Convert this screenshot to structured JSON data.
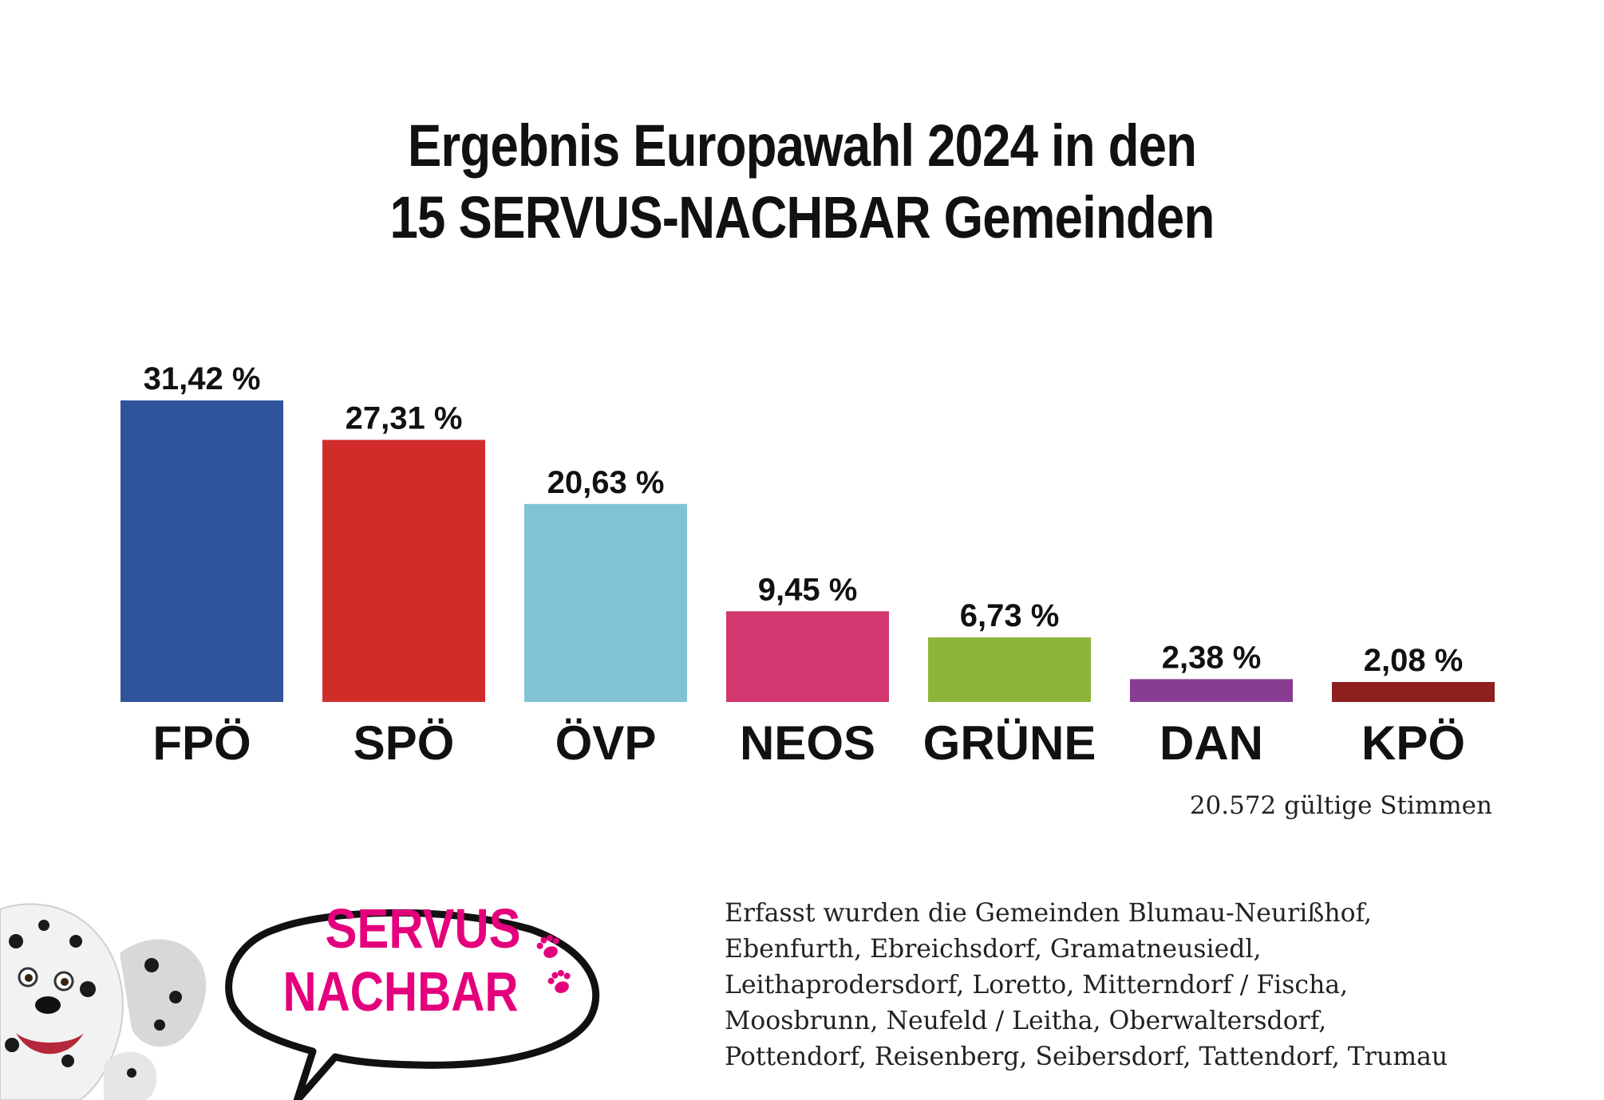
{
  "title_lines": [
    "Ergebnis Europawahl 2024 in den",
    "15 SERVUS-NACHBAR Gemeinden"
  ],
  "chart_data": {
    "type": "bar",
    "title": "Ergebnis Europawahl 2024 in den 15 SERVUS-NACHBAR Gemeinden",
    "categories": [
      "FPÖ",
      "SPÖ",
      "ÖVP",
      "NEOS",
      "GRÜNE",
      "DAN",
      "KPÖ"
    ],
    "values": [
      31.42,
      27.31,
      20.63,
      9.45,
      6.73,
      2.38,
      2.08
    ],
    "value_labels": [
      "31,42 %",
      "27,31 %",
      "20,63 %",
      "9,45 %",
      "6,73 %",
      "2,38 %",
      "2,08 %"
    ],
    "colors": [
      "#30549c",
      "#d12c2a",
      "#80c4d3",
      "#d2386f",
      "#8cb53a",
      "#883d93",
      "#8d1f1f"
    ],
    "ylim": [
      0,
      31.42
    ],
    "grid": false,
    "legend": "none"
  },
  "valid_votes": "20.572 gültige Stimmen",
  "note_lines": [
    "Erfasst wurden die Gemeinden Blumau-Neurißhof,",
    "Ebenfurth, Ebreichsdorf, Gramatneusiedl,",
    "Leithaprodersdorf, Loretto, Mitterndorf / Fischa,",
    "Moosbrunn, Neufeld / Leitha, Oberwaltersdorf,",
    "Pottendorf, Reisenberg, Seibersdorf, Tattendorf, Trumau"
  ],
  "logo": {
    "line1": "SERVUS",
    "line2": "NACHBAR",
    "text_color": "#e4007c",
    "icon": "paw-icon"
  }
}
